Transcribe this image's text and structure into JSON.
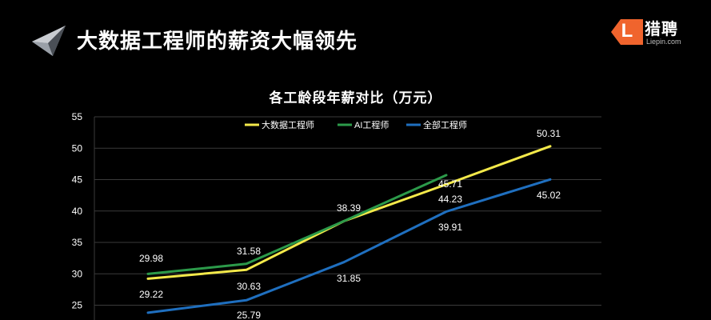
{
  "header": {
    "title": "大数据工程师的薪资大幅领先"
  },
  "brand": {
    "letter": "L",
    "name": "猎聘",
    "url": "Liepin.com",
    "color": "#f0642d"
  },
  "chart_data": {
    "type": "line",
    "title": "各工龄段年薪对比（万元）",
    "xlabel": "",
    "ylabel": "",
    "ylim": [
      25,
      55
    ],
    "yticks": [
      25,
      30,
      35,
      40,
      45,
      50,
      55
    ],
    "grid": true,
    "legend_position": "top-center",
    "categories": [
      "",
      "",
      "",
      "",
      ""
    ],
    "series": [
      {
        "name": "大数据工程师",
        "color": "#f3e94a",
        "values": [
          29.22,
          30.63,
          38.39,
          44.23,
          50.31
        ]
      },
      {
        "name": "AI工程师",
        "color": "#2c9a4a",
        "values": [
          29.98,
          31.58,
          38.39,
          45.71,
          null
        ]
      },
      {
        "name": "全部工程师",
        "color": "#1f6fbf",
        "values": [
          23.8,
          25.79,
          31.85,
          39.91,
          45.02
        ]
      }
    ],
    "data_labels": [
      {
        "text": "29.98"
      },
      {
        "text": "29.22"
      },
      {
        "text": "31.58"
      },
      {
        "text": "30.63"
      },
      {
        "text": "25.79"
      },
      {
        "text": "38.39"
      },
      {
        "text": "31.85"
      },
      {
        "text": "45.71"
      },
      {
        "text": "44.23"
      },
      {
        "text": "39.91"
      },
      {
        "text": "50.31"
      },
      {
        "text": "45.02"
      }
    ]
  }
}
